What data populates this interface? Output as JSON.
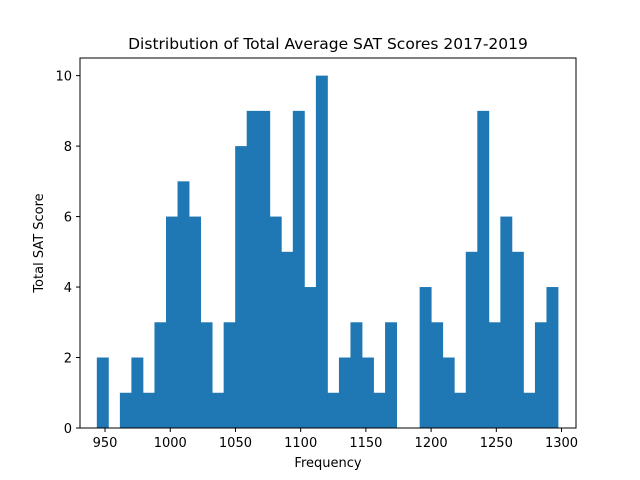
{
  "chart_data": {
    "type": "bar",
    "title": "Distribution of Total Average SAT Scores 2017-2019",
    "xlabel": "Frequency",
    "ylabel": "Total SAT Score",
    "xlim": [
      930.8,
      1311.1
    ],
    "ylim": [
      0,
      10.5
    ],
    "xticks": [
      950,
      1000,
      1050,
      1100,
      1150,
      1200,
      1250,
      1300
    ],
    "yticks": [
      0,
      2,
      4,
      6,
      8,
      10
    ],
    "bin_start": 943.7,
    "bin_width": 8.84,
    "values": [
      2,
      0,
      1,
      2,
      1,
      3,
      6,
      7,
      6,
      3,
      1,
      3,
      8,
      9,
      9,
      6,
      5,
      9,
      4,
      10,
      1,
      2,
      3,
      2,
      1,
      3,
      0,
      0,
      4,
      3,
      2,
      1,
      5,
      9,
      3,
      6,
      5,
      1,
      3,
      4
    ],
    "bar_color": "#1f77b4",
    "grid": false
  }
}
